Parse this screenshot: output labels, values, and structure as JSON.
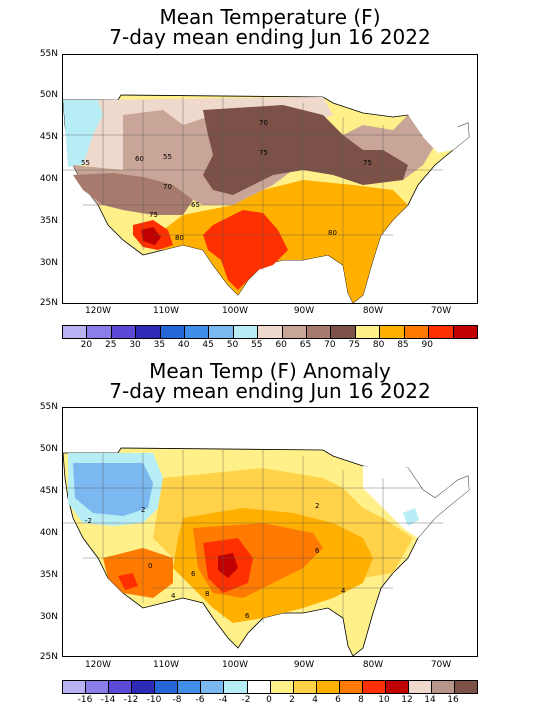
{
  "top": {
    "title_line1": "Mean Temperature (F)",
    "title_line2": "7-day mean ending Jun 16 2022",
    "lat_labels": [
      "55N",
      "50N",
      "45N",
      "40N",
      "35N",
      "30N",
      "25N"
    ],
    "lon_labels": [
      "120W",
      "110W",
      "100W",
      "90W",
      "80W",
      "70W"
    ],
    "colorbar_labels": [
      "20",
      "25",
      "30",
      "35",
      "40",
      "45",
      "50",
      "55",
      "60",
      "65",
      "70",
      "75",
      "80",
      "85",
      "90"
    ],
    "colorbar_colors": [
      "#b9b2f3",
      "#8c7ee8",
      "#5b4ad6",
      "#2d2ab8",
      "#2566d9",
      "#3f8ee8",
      "#7bb8f0",
      "#b7edf5",
      "#efd9cc",
      "#c9a598",
      "#a67a6c",
      "#7b5148",
      "#fff08a",
      "#ffb000",
      "#ff7a00",
      "#ff3000",
      "#c00000"
    ],
    "contour_labels": [
      "55",
      "60",
      "55",
      "70",
      "75",
      "65",
      "75",
      "80",
      "70",
      "75",
      "80"
    ]
  },
  "bottom": {
    "title_line1": "Mean Temp (F) Anomaly",
    "title_line2": "7-day mean ending Jun 16 2022",
    "lat_labels": [
      "55N",
      "50N",
      "45N",
      "40N",
      "35N",
      "30N",
      "25N"
    ],
    "lon_labels": [
      "120W",
      "110W",
      "100W",
      "90W",
      "80W",
      "70W"
    ],
    "colorbar_labels": [
      "-16",
      "-14",
      "-12",
      "-10",
      "-8",
      "-6",
      "-4",
      "-2",
      "0",
      "2",
      "4",
      "6",
      "8",
      "10",
      "12",
      "14",
      "16"
    ],
    "colorbar_colors": [
      "#b9b2f3",
      "#8c7ee8",
      "#5b4ad6",
      "#2d2ab8",
      "#2566d9",
      "#3f8ee8",
      "#7bb8f0",
      "#b7edf5",
      "#ffffff",
      "#fff08a",
      "#ffd24a",
      "#ffb000",
      "#ff7a00",
      "#ff3000",
      "#c00000",
      "#efd9cc",
      "#b7958a",
      "#7b5148"
    ],
    "contour_labels": [
      "2",
      "-2",
      "0",
      "6",
      "8",
      "4",
      "6",
      "4",
      "6",
      "2"
    ]
  }
}
